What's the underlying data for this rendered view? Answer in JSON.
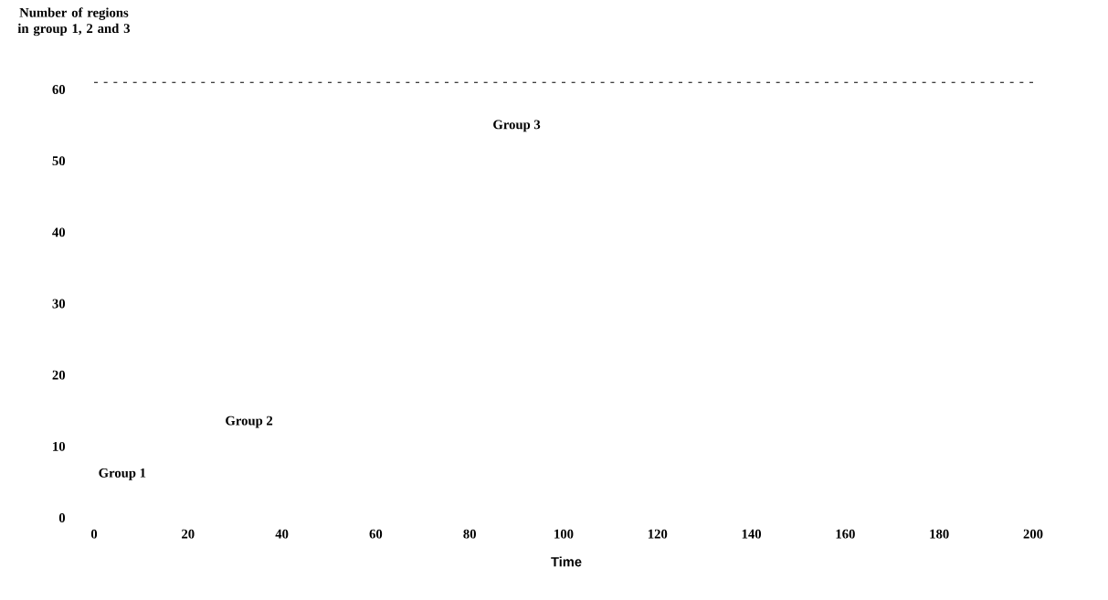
{
  "chart_data": {
    "type": "line",
    "xlabel": "Time",
    "ylabel": "Number of regions in group 1, 2 and 3",
    "xlim": [
      0,
      200
    ],
    "xticks": [
      0,
      20,
      40,
      60,
      80,
      100,
      120,
      140,
      160,
      180,
      200
    ],
    "ylim": [
      0,
      61
    ],
    "yticks": [
      0,
      10,
      20,
      30,
      40,
      50,
      60
    ],
    "ref_lines": [
      {
        "axis": "y",
        "value": 61,
        "line_style": "dotted",
        "color": "#000000"
      }
    ],
    "annotations": [
      "Group 1",
      "Group 2",
      "Group 3"
    ],
    "grid": false
  }
}
